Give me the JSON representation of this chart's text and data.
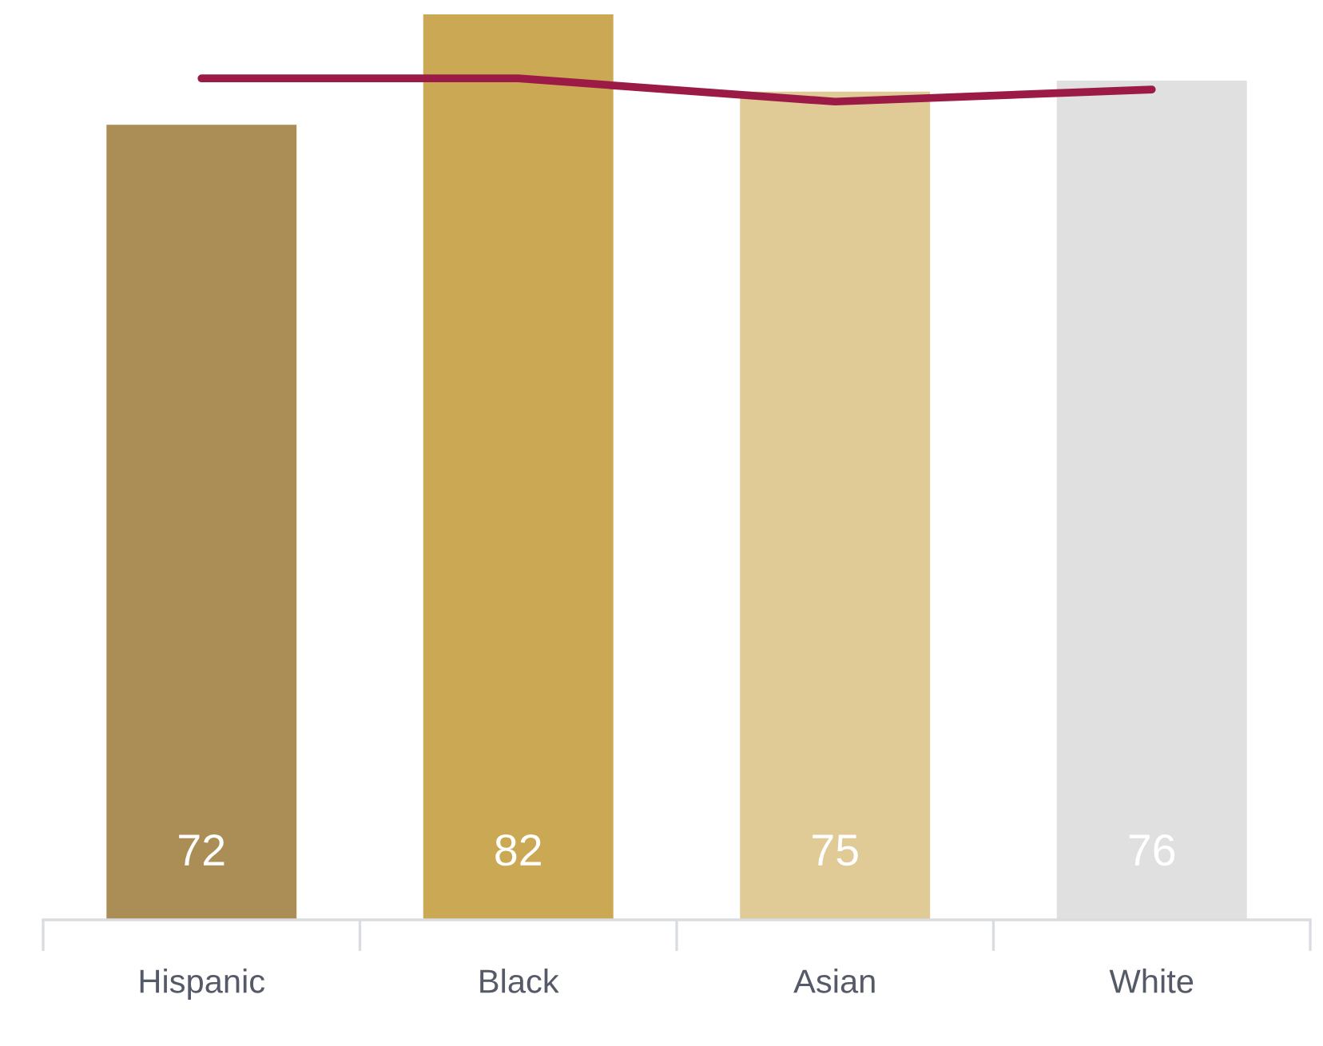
{
  "chart_data": {
    "type": "bar",
    "categories": [
      "Hispanic",
      "Black",
      "Asian",
      "White"
    ],
    "ylim": [
      0,
      82
    ],
    "grid": false,
    "legend": false,
    "series": [
      {
        "colors": [
          "#ab8e55",
          "#cba853",
          "#e0ca96",
          "#e0e0e0"
        ],
        "values": [
          72,
          82,
          75,
          76
        ],
        "value_labels": [
          "72",
          "82",
          "75",
          "76"
        ]
      },
      {
        "type": "line",
        "color": "#9b1b46",
        "values": [
          76.2,
          76.2,
          74.1,
          75.2
        ],
        "marker": "none",
        "line_style": "solid"
      }
    ]
  }
}
